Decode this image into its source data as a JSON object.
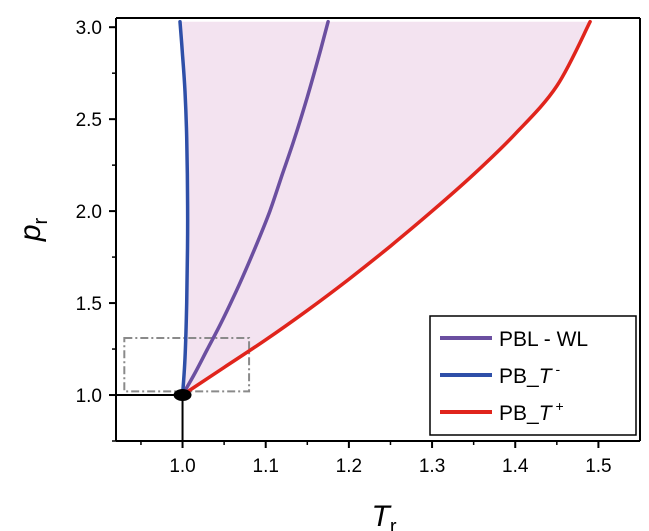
{
  "chart_data": {
    "type": "line",
    "xlabel": {
      "main": "T",
      "sub": "r"
    },
    "ylabel": {
      "main": "p",
      "sub": "r"
    },
    "xlim": [
      0.92,
      1.55
    ],
    "ylim": [
      0.75,
      3.05
    ],
    "xticks": [
      "1.0",
      "1.1",
      "1.2",
      "1.3",
      "1.4",
      "1.5"
    ],
    "xtick_values": [
      1.0,
      1.1,
      1.2,
      1.3,
      1.4,
      1.5
    ],
    "yticks": [
      "1.0",
      "1.5",
      "2.0",
      "2.5",
      "3.0"
    ],
    "ytick_values": [
      1.0,
      1.5,
      2.0,
      2.5,
      3.0
    ],
    "grid": false,
    "legend_position": "bottom-right",
    "shaded_region": {
      "between": [
        "PB_T-",
        "PB_T+"
      ],
      "color": "#f3e3f0"
    },
    "critical_point": {
      "x": 1.0,
      "y": 1.0
    },
    "reference_lines": [
      {
        "orientation": "horizontal",
        "y": 1.0,
        "x_from": 0.92,
        "x_to": 1.0
      },
      {
        "orientation": "vertical",
        "x": 1.0,
        "y_from": 0.75,
        "y_to": 1.0
      }
    ],
    "inset_box": {
      "x_range": [
        0.93,
        1.08
      ],
      "y_range": [
        1.02,
        1.31
      ],
      "style": "dash-dot"
    },
    "series": [
      {
        "id": "PBL-WL",
        "legend": {
          "text": "PBL - WL",
          "italic": "",
          "sup": ""
        },
        "color": "#6b4fa0",
        "x": [
          1.0,
          1.015,
          1.03,
          1.045,
          1.06,
          1.075,
          1.09,
          1.105,
          1.12,
          1.135,
          1.15,
          1.165,
          1.175
        ],
        "y": [
          1.0,
          1.12,
          1.25,
          1.38,
          1.52,
          1.67,
          1.83,
          2.0,
          2.2,
          2.4,
          2.62,
          2.86,
          3.03
        ]
      },
      {
        "id": "PB_T-",
        "legend": {
          "text": "PB_",
          "italic": "T",
          "sup": "-"
        },
        "color": "#2e4fa8",
        "x": [
          1.0,
          1.003,
          1.005,
          1.006,
          1.006,
          1.005,
          1.003,
          1.0,
          0.997
        ],
        "y": [
          1.0,
          1.2,
          1.5,
          1.8,
          2.1,
          2.4,
          2.65,
          2.85,
          3.03
        ]
      },
      {
        "id": "PB_T+",
        "legend": {
          "text": "PB_",
          "italic": "T",
          "sup": "+"
        },
        "color": "#e0241c",
        "x": [
          1.0,
          1.05,
          1.1,
          1.15,
          1.2,
          1.25,
          1.3,
          1.35,
          1.4,
          1.45,
          1.49
        ],
        "y": [
          1.0,
          1.15,
          1.3,
          1.46,
          1.63,
          1.81,
          2.0,
          2.2,
          2.42,
          2.68,
          3.03
        ]
      }
    ]
  }
}
